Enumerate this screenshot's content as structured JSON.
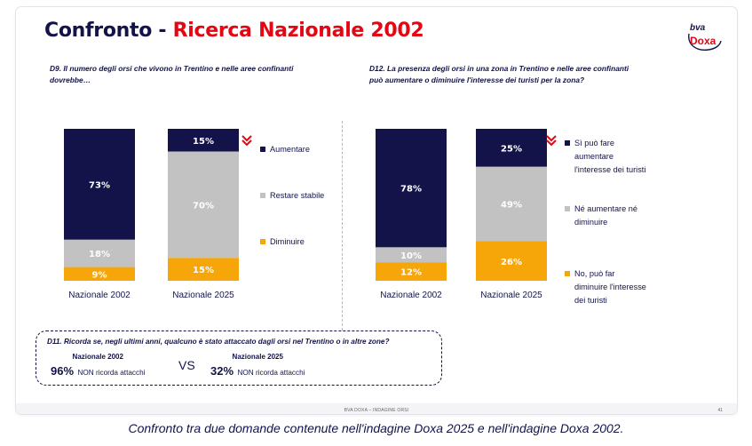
{
  "title": {
    "part1": "Confronto",
    "separator": " - ",
    "part2": "Ricerca Nazionale 2002"
  },
  "logo": {
    "top": "bva",
    "bottom": "Doxa"
  },
  "colors": {
    "navy": "#13134a",
    "grey": "#c2c2c2",
    "orange": "#f7a60a",
    "red": "#e30613"
  },
  "chart_data": [
    {
      "type": "bar",
      "stacked": true,
      "title": "D9. Il numero degli orsi che vivono in Trentino e nelle aree confinanti dovrebbe…",
      "categories": [
        "Nazionale 2002",
        "Nazionale 2025"
      ],
      "series": [
        {
          "name": "Aumentare",
          "values": [
            73,
            15
          ],
          "labels": [
            "73%",
            "15%"
          ],
          "color": "#13134a"
        },
        {
          "name": "Restare stabile",
          "values": [
            18,
            70
          ],
          "labels": [
            "18%",
            "70%"
          ],
          "color": "#c2c2c2"
        },
        {
          "name": "Diminuire",
          "values": [
            9,
            15
          ],
          "labels": [
            "9%",
            "15%"
          ],
          "color": "#f7a60a"
        }
      ],
      "ylim": [
        0,
        100
      ],
      "annotation": "red-down-chevron-icon"
    },
    {
      "type": "bar",
      "stacked": true,
      "title": "D12. La presenza degli orsi in una zona in Trentino e nelle aree confinanti può aumentare o diminuire l'interesse dei turisti per la zona?",
      "categories": [
        "Nazionale 2002",
        "Nazionale 2025"
      ],
      "series": [
        {
          "name": "Sì può fare aumentare l'interesse dei turisti",
          "values": [
            78,
            25
          ],
          "labels": [
            "78%",
            "25%"
          ],
          "color": "#13134a"
        },
        {
          "name": "Né aumentare né diminuire",
          "values": [
            10,
            49
          ],
          "labels": [
            "10%",
            "49%"
          ],
          "color": "#c2c2c2"
        },
        {
          "name": "No, può far diminuire l'interesse dei turisti",
          "values": [
            12,
            26
          ],
          "labels": [
            "12%",
            "26%"
          ],
          "color": "#f7a60a"
        }
      ],
      "ylim": [
        0,
        100
      ],
      "annotation": "red-down-chevron-icon"
    }
  ],
  "left": {
    "question_line1": "D9. Il numero degli orsi che vivono in Trentino e nelle aree confinanti",
    "question_line2": "dovrebbe…",
    "legend": [
      "Aumentare",
      "Restare stabile",
      "Diminuire"
    ]
  },
  "right": {
    "question_line1": "D12. La presenza degli orsi in una zona in Trentino e nelle aree confinanti",
    "question_line2": "può aumentare o diminuire l'interesse dei turisti per la zona?",
    "legend": [
      [
        "Sì può fare",
        "aumentare",
        "l'interesse dei turisti"
      ],
      [
        "Né aumentare né",
        "diminuire"
      ],
      [
        "No, può far",
        "diminuire l'interesse",
        "dei turisti"
      ]
    ]
  },
  "d11": {
    "question": "D11. Ricorda se, negli ultimi anni, qualcuno è stato attaccato dagli orsi nel Trentino o in altre zone?",
    "col1": {
      "header": "Nazionale 2002",
      "pct": "96%",
      "text": "NON ricorda attacchi"
    },
    "vs": "VS",
    "col2": {
      "header": "Nazionale 2025",
      "pct": "32%",
      "text": "NON ricorda attacchi"
    }
  },
  "footer": {
    "text": "BVA DOXA – INDAGINE ORSI",
    "page": "41"
  },
  "caption": "Confronto tra due domande contenute nell'indagine Doxa 2025 e nell'indagine Doxa 2002."
}
